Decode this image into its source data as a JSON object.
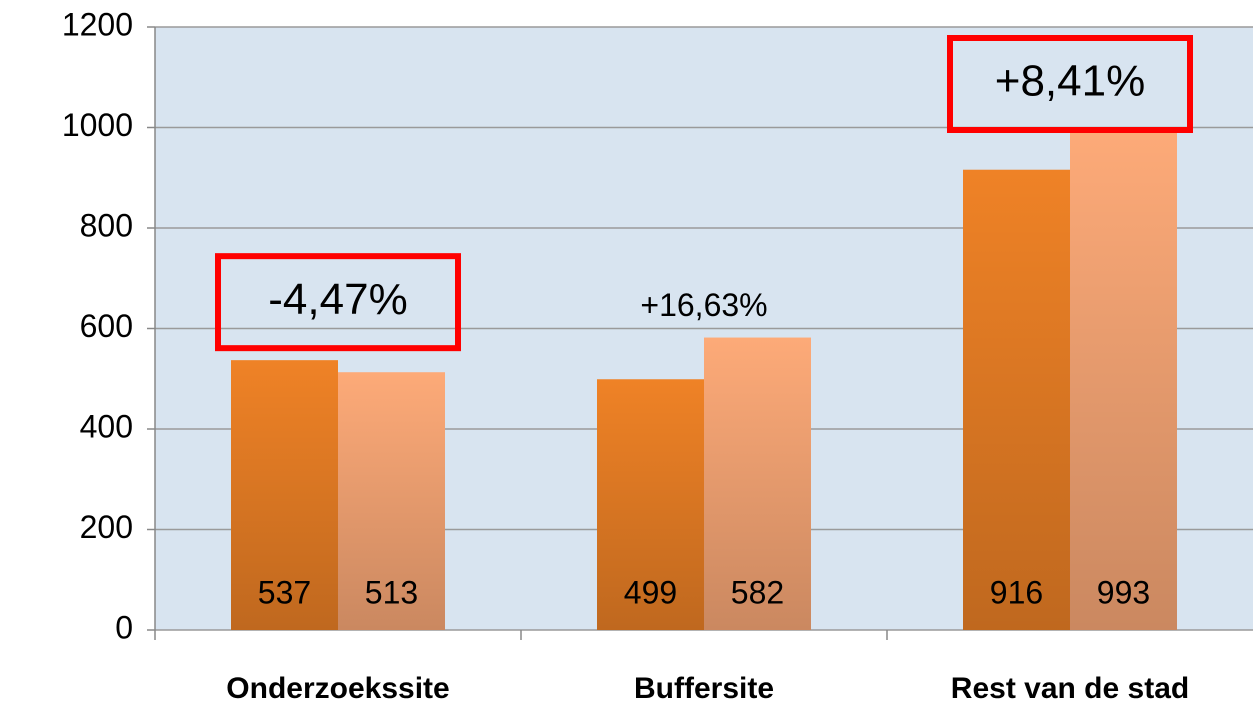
{
  "chart_data": {
    "type": "bar",
    "categories": [
      "Onderzoekssite",
      "Buffersite",
      "Rest van de stad"
    ],
    "series": [
      {
        "color": "#ef8226",
        "values": [
          537,
          499,
          916
        ]
      },
      {
        "color": "#fdaa78",
        "values": [
          513,
          582,
          993
        ]
      }
    ],
    "annotations": [
      {
        "text": "-4,47%",
        "boxed": true,
        "box_color": "#ff0000"
      },
      {
        "text": "+16,63%",
        "boxed": false
      },
      {
        "text": "+8,41%",
        "boxed": true,
        "box_color": "#ff0000"
      }
    ],
    "ylim": [
      0,
      1200
    ],
    "yticks": [
      0,
      200,
      400,
      600,
      800,
      1000,
      1200
    ],
    "grid": true,
    "plot_background": "#d8e4f0",
    "show_value_labels": true
  }
}
